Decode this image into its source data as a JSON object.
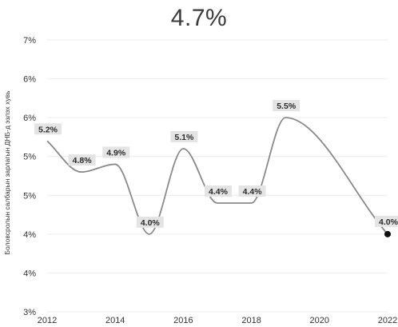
{
  "header": {
    "headline": "4.7%"
  },
  "chart_data": {
    "type": "line",
    "title": "4.7%",
    "xlabel": "",
    "ylabel": "Боловсролын салбарын зарлагын ДНБ-д эзлэх хувь",
    "x_ticks": [
      "2012",
      "2014",
      "2016",
      "2018",
      "2020",
      "2022"
    ],
    "y_ticks": [
      "3%",
      "4%",
      "4%",
      "5%",
      "5%",
      "6%",
      "6%",
      "7%"
    ],
    "xlim": [
      2012,
      2022
    ],
    "ylim": [
      3.0,
      6.5
    ],
    "grid": true,
    "legend": "none",
    "series": [
      {
        "x": [
          2012,
          2013,
          2014,
          2015,
          2016,
          2017,
          2018,
          2019,
          2022
        ],
        "values": [
          5.2,
          4.8,
          4.9,
          4.0,
          5.1,
          4.4,
          4.4,
          5.5,
          4.0
        ],
        "data_labels": [
          "5.2%",
          "4.8%",
          "4.9%",
          "4.0%",
          "5.1%",
          "4.4%",
          "4.4%",
          "5.5%",
          "4.0%"
        ]
      }
    ],
    "colors": {
      "line": "#8a8a8a",
      "marker": "#111111",
      "label_bg": "#e4e4e4",
      "grid": "#ececec"
    }
  }
}
